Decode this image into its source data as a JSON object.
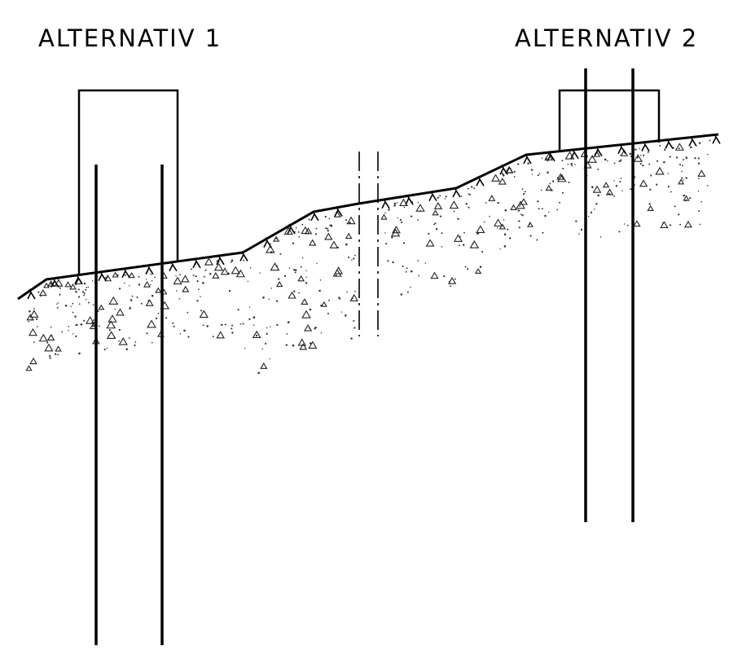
{
  "labels": {
    "alternative_1": "ALTERNATIV 1",
    "alternative_2": "ALTERNATIV 2"
  },
  "colors": {
    "line": "#000000",
    "background": "#ffffff"
  }
}
